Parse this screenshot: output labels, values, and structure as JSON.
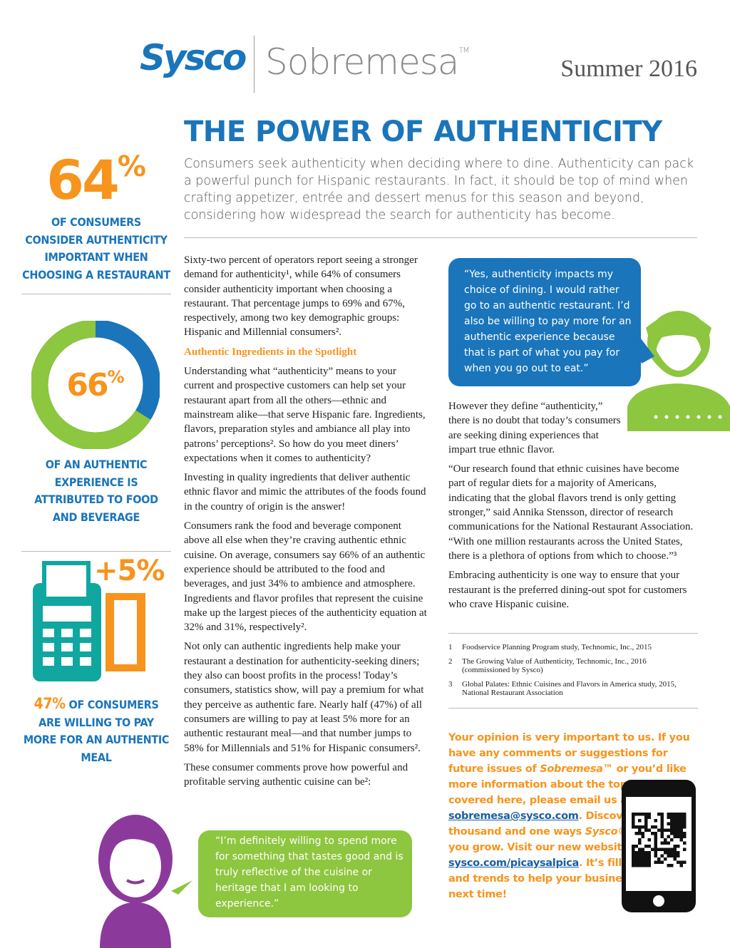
{
  "header": {
    "brand": "Sysco",
    "product": "Sobremesa",
    "trademark": "TM",
    "issue": "Summer 2016"
  },
  "title": "THE POWER OF AUTHENTICITY",
  "intro": "Consumers seek authenticity when deciding where to dine. Authenticity can pack a powerful punch for Hispanic restaurants. In fact, it should be top of mind when crafting appetizer, entrée and dessert menus for this season and beyond, considering how widespread the search for authenticity has become.",
  "stats": [
    {
      "number": "64",
      "unit": "%",
      "caption": "OF CONSUMERS CONSIDER AUTHENTICITY IMPORTANT WHEN CHOOSING A RESTAURANT"
    },
    {
      "value": 66,
      "unit": "%",
      "caption": "OF AN AUTHENTIC EXPERIENCE IS ATTRIBUTED TO FOOD AND BEVERAGE"
    },
    {
      "number": "+5%",
      "highlight": "47%",
      "caption": "OF CONSUMERS ARE WILLING TO PAY MORE FOR AN AUTHENTIC MEAL"
    }
  ],
  "column1": {
    "p1": "Sixty-two percent of operators report seeing a stronger demand for authenticity¹, while 64% of consumers consider authenticity important when choosing a restaurant. That percentage jumps to 69% and 67%, respectively, among two key demographic groups: Hispanic and Millennial consumers².",
    "heading": "Authentic Ingredients in the Spotlight",
    "p2": "Understanding what “authenticity” means to your current and prospective customers can help set your restaurant apart from all the others—ethnic and mainstream alike—that serve Hispanic fare. Ingredients, flavors, preparation styles and ambiance all play into patrons’ perceptions². So how do you meet diners’ expectations when it comes to authenticity?",
    "p3": "Investing in quality ingredients that deliver authentic ethnic flavor and mimic the attributes of the foods found in the country of origin is the answer!",
    "p4": "Consumers rank the food and beverage component above all else when they’re craving authentic ethnic cuisine. On average, consumers say 66% of an authentic experience should be attributed to the food and beverages, and just 34% to ambience and atmosphere. Ingredients and flavor profiles that represent the cuisine make up the largest pieces of the authenticity equation at 32% and 31%, respectively².",
    "p5": "Not only can authentic ingredients help make your restaurant a destination for authenticity-seeking diners; they also can boost profits in the process! Today’s consumers, statistics show, will pay a premium for what they perceive as authentic fare. Nearly half (47%) of all consumers are willing to pay at least 5% more for an authentic restaurant meal—and that number jumps to 58% for Millennials and 51% for Hispanic consumers².",
    "p6": "These consumer comments prove how powerful and profitable serving authentic cuisine can be²:",
    "quote": "“I’m definitely willing to spend more for something that tastes good and is truly reflective of the cuisine or heritage that I am looking to experience.”"
  },
  "column2": {
    "quote": "“Yes, authenticity impacts my choice of dining. I would rather go to an authentic restaurant. I’d also be willing to pay more for an authentic experience because that is part of what you pay for when you go out to eat.”",
    "p1": "However they define “authenticity,” there is no doubt that today’s consumers are seeking dining experiences that impart true ethnic flavor.",
    "p2": "“Our research found that ethnic cuisines have become part of regular diets for a majority of Americans, indicating that the global flavors trend is only getting stronger,” said Annika Stensson, director of research communications for the National Restaurant Association. “With one million restaurants across the United States, there is a plethora of options from which to choose.”³",
    "p3": "Embracing authenticity is one way to ensure that your restaurant is the preferred dining-out spot for customers who crave Hispanic cuisine.",
    "footnotes": [
      {
        "number": "1",
        "text": "Foodservice Planning Program study, Technomic, Inc., 2015"
      },
      {
        "number": "2",
        "text": "The Growing Value of Authenticity, Technomic, Inc., 2016 (commissioned by Sysco)"
      },
      {
        "number": "3",
        "text": "Global Palates: Ethnic Cuisines and Flavors in America study, 2015, National Restaurant Association"
      }
    ],
    "closing": [
      "Your opinion is very important to us. If you have any comments or suggestions for future issues of ",
      "Sobremesa™",
      " or you’d like more information about the topics we’ve covered here, please email us at ",
      "sobremesa@sysco.com",
      ". Discover the thousand and one ways ",
      "Sysco®",
      " can help you grow. Visit our new website, ",
      "sysco.com/picaysalpica",
      ". It’s filled with tips and trends to help your business. Until next time!"
    ]
  }
}
